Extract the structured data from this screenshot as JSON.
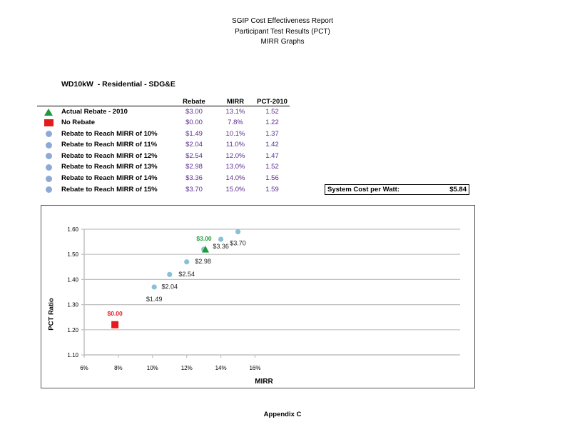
{
  "header": {
    "line1": "SGIP Cost Effectiveness Report",
    "line2": "Participant Test Results (PCT)",
    "line3": "MIRR Graphs"
  },
  "section_title": "WD10kW  - Residential - SDG&E",
  "table": {
    "columns": [
      "Rebate",
      "MIRR",
      "PCT-2010"
    ],
    "rows": [
      {
        "marker": "green-triangle",
        "label": "Actual Rebate - 2010",
        "rebate": "$3.00",
        "mirr": "13.1%",
        "pct": "1.52"
      },
      {
        "marker": "red-square",
        "label": "No Rebate",
        "rebate": "$0.00",
        "mirr": "7.8%",
        "pct": "1.22"
      },
      {
        "marker": "blue-circle",
        "label": "Rebate to Reach MIRR of 10%",
        "rebate": "$1.49",
        "mirr": "10.1%",
        "pct": "1.37"
      },
      {
        "marker": "blue-circle",
        "label": "Rebate to Reach MIRR of 11%",
        "rebate": "$2.04",
        "mirr": "11.0%",
        "pct": "1.42"
      },
      {
        "marker": "blue-circle",
        "label": "Rebate to Reach MIRR of 12%",
        "rebate": "$2.54",
        "mirr": "12.0%",
        "pct": "1.47"
      },
      {
        "marker": "blue-circle",
        "label": "Rebate to Reach MIRR of 13%",
        "rebate": "$2.98",
        "mirr": "13.0%",
        "pct": "1.52"
      },
      {
        "marker": "blue-circle",
        "label": "Rebate to Reach MIRR of 14%",
        "rebate": "$3.36",
        "mirr": "14.0%",
        "pct": "1.56"
      },
      {
        "marker": "blue-circle",
        "label": "Rebate to Reach MIRR of 15%",
        "rebate": "$3.70",
        "mirr": "15.0%",
        "pct": "1.59"
      }
    ]
  },
  "system_cost": {
    "label": "System Cost per Watt:",
    "value": "$5.84"
  },
  "colors": {
    "actual": "#1e9a3a",
    "no_rebate": "#e41a1c",
    "reach_table": "#8ea9d8",
    "reach_chart": "#86c1d6",
    "table_numbers": "#5b2c8f",
    "gridline": "#c0c0c0"
  },
  "chart_data": {
    "type": "scatter",
    "title": "",
    "xlabel": "MIRR",
    "ylabel": "PCT Ratio",
    "xlim": [
      0.06,
      0.17
    ],
    "ylim": [
      1.1,
      1.6
    ],
    "x_ticks": [
      "6%",
      "8%",
      "10%",
      "12%",
      "14%",
      "16%"
    ],
    "y_ticks": [
      "1.10",
      "1.20",
      "1.30",
      "1.40",
      "1.50",
      "1.60"
    ],
    "grid": "horizontal",
    "legend": "none",
    "series": [
      {
        "name": "Actual Rebate - 2010",
        "marker": "triangle",
        "color": "#1e9a3a",
        "points": [
          {
            "x": 0.131,
            "y": 1.52,
            "label": "$3.00"
          }
        ]
      },
      {
        "name": "No Rebate",
        "marker": "square",
        "color": "#e41a1c",
        "points": [
          {
            "x": 0.078,
            "y": 1.22,
            "label": "$0.00"
          }
        ]
      },
      {
        "name": "Rebate to Reach MIRR",
        "marker": "circle",
        "color": "#86c1d6",
        "points": [
          {
            "x": 0.101,
            "y": 1.37,
            "label": "$1.49"
          },
          {
            "x": 0.11,
            "y": 1.42,
            "label": "$2.04"
          },
          {
            "x": 0.12,
            "y": 1.47,
            "label": "$2.54"
          },
          {
            "x": 0.13,
            "y": 1.52,
            "label": "$2.98"
          },
          {
            "x": 0.14,
            "y": 1.56,
            "label": "$3.36"
          },
          {
            "x": 0.15,
            "y": 1.59,
            "label": "$3.70"
          }
        ]
      }
    ]
  },
  "footer": "Appendix C"
}
